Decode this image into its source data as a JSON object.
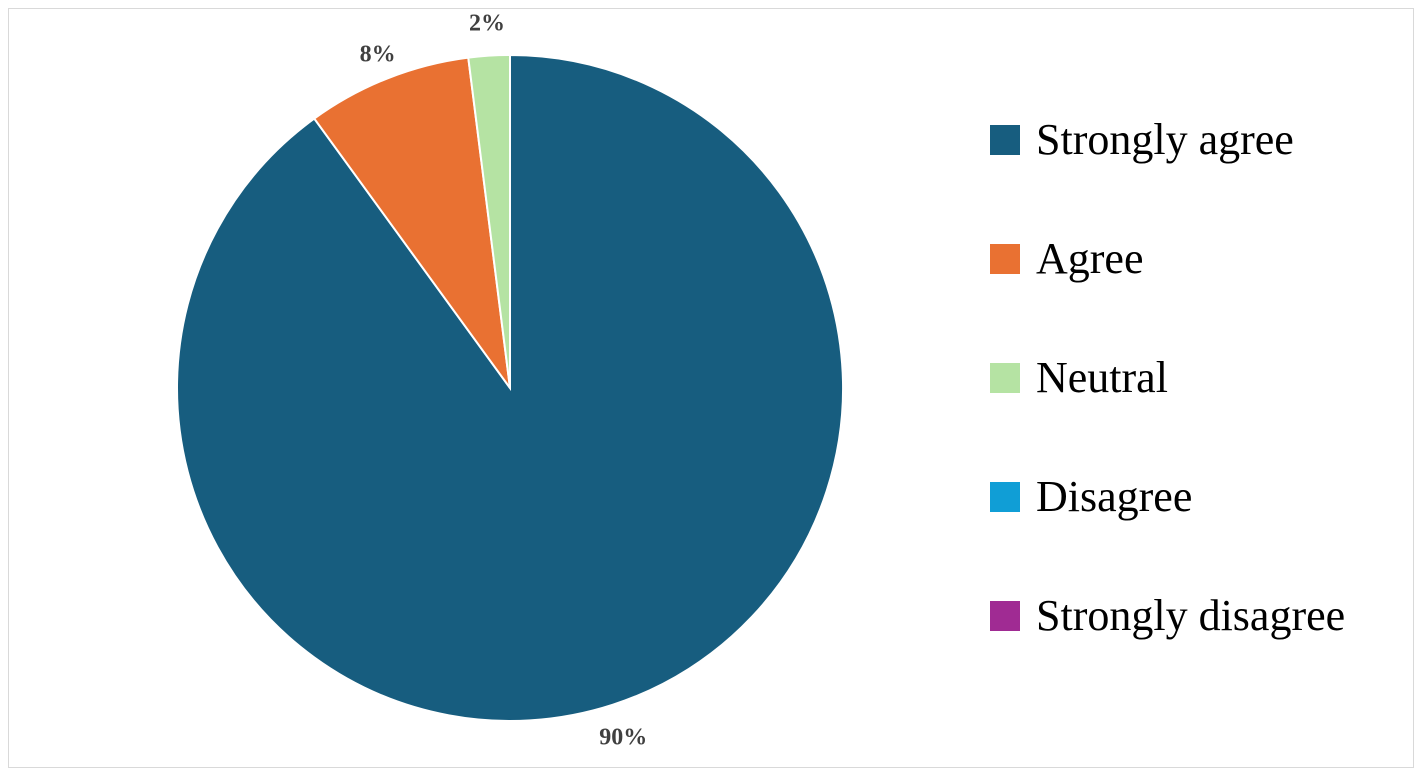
{
  "chart_data": {
    "type": "pie",
    "title": "",
    "categories": [
      "Strongly agree",
      "Agree",
      "Neutral",
      "Disagree",
      "Strongly disagree"
    ],
    "values": [
      90,
      8,
      2,
      0,
      0
    ],
    "labels": [
      "90%",
      "8%",
      "2%",
      "",
      ""
    ],
    "colors": [
      "#175d7f",
      "#e97132",
      "#b5e3a3",
      "#109ed6",
      "#a02b93"
    ],
    "start_angle_deg": 0,
    "direction": "clockwise",
    "legend_position": "right"
  }
}
